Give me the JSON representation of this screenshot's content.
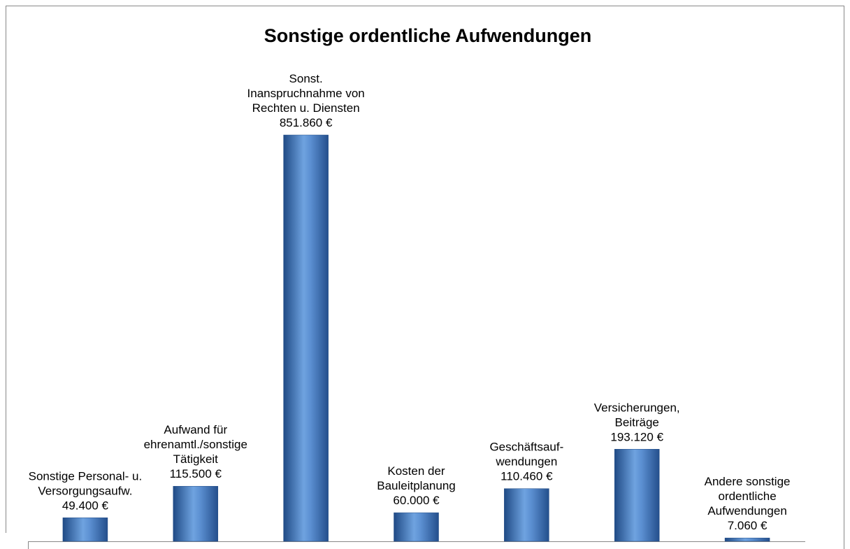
{
  "chart_data": {
    "type": "bar",
    "title": "Sonstige ordentliche Aufwendungen",
    "categories": [
      [
        "Sonstige Personal- u.",
        "Versorgungsaufw."
      ],
      [
        "Aufwand für",
        "ehrenamtl./sonstige",
        "Tätigkeit"
      ],
      [
        "Sonst.",
        "Inanspruchnahme von",
        "Rechten u. Diensten"
      ],
      [
        "Kosten der",
        "Bauleitplanung"
      ],
      [
        "Geschäftsauf-",
        "wendungen"
      ],
      [
        "Versicherungen,",
        "Beiträge"
      ],
      [
        "Andere sonstige",
        "ordentliche",
        "Aufwendungen"
      ]
    ],
    "values": [
      49400,
      115500,
      851860,
      60000,
      110460,
      193120,
      7060
    ],
    "value_labels": [
      "49.400 €",
      "115.500 €",
      "851.860 €",
      "60.000 €",
      "110.460 €",
      "193.120 €",
      "7.060 €"
    ],
    "color": "#4a7fc1"
  }
}
